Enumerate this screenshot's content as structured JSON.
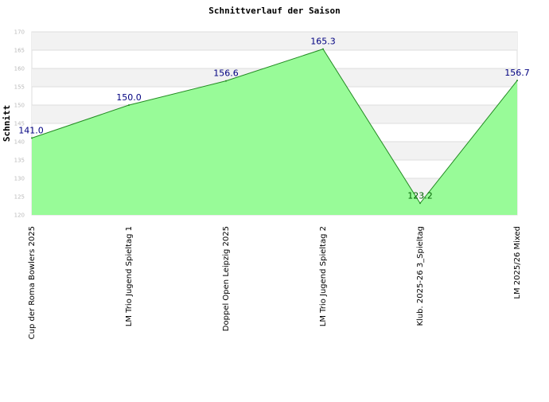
{
  "chart_data": {
    "type": "area",
    "title": "Schnittverlauf der Saison",
    "xlabel": "",
    "ylabel": "Schnitt",
    "categories": [
      "Cup der Roma Bowlers 2025",
      "LM Trio Jugend Spieltag 1",
      "Doppel Open Leipzig 2025",
      "LM Trio Jugend Spieltag 2",
      "Klub. 2025-26 3_Spieltag",
      "LM 2025/26 Mixed"
    ],
    "values": [
      141.0,
      150.0,
      156.6,
      165.3,
      123.2,
      156.7
    ],
    "data_labels": [
      "141.0",
      "150.0",
      "156.6",
      "165.3",
      "123.2",
      "156.7"
    ],
    "ylim": [
      120,
      170
    ],
    "yticks": [
      "120",
      "125",
      "130",
      "135",
      "140",
      "145",
      "150",
      "155",
      "160",
      "165",
      "170"
    ],
    "grid": true,
    "legend": "none",
    "colors": {
      "area_fill": "#98fb98",
      "line": "#228b22",
      "label_default": "#000080",
      "label_low": "#006400",
      "band": "#f2f2f2",
      "grid": "#dddddd"
    }
  }
}
